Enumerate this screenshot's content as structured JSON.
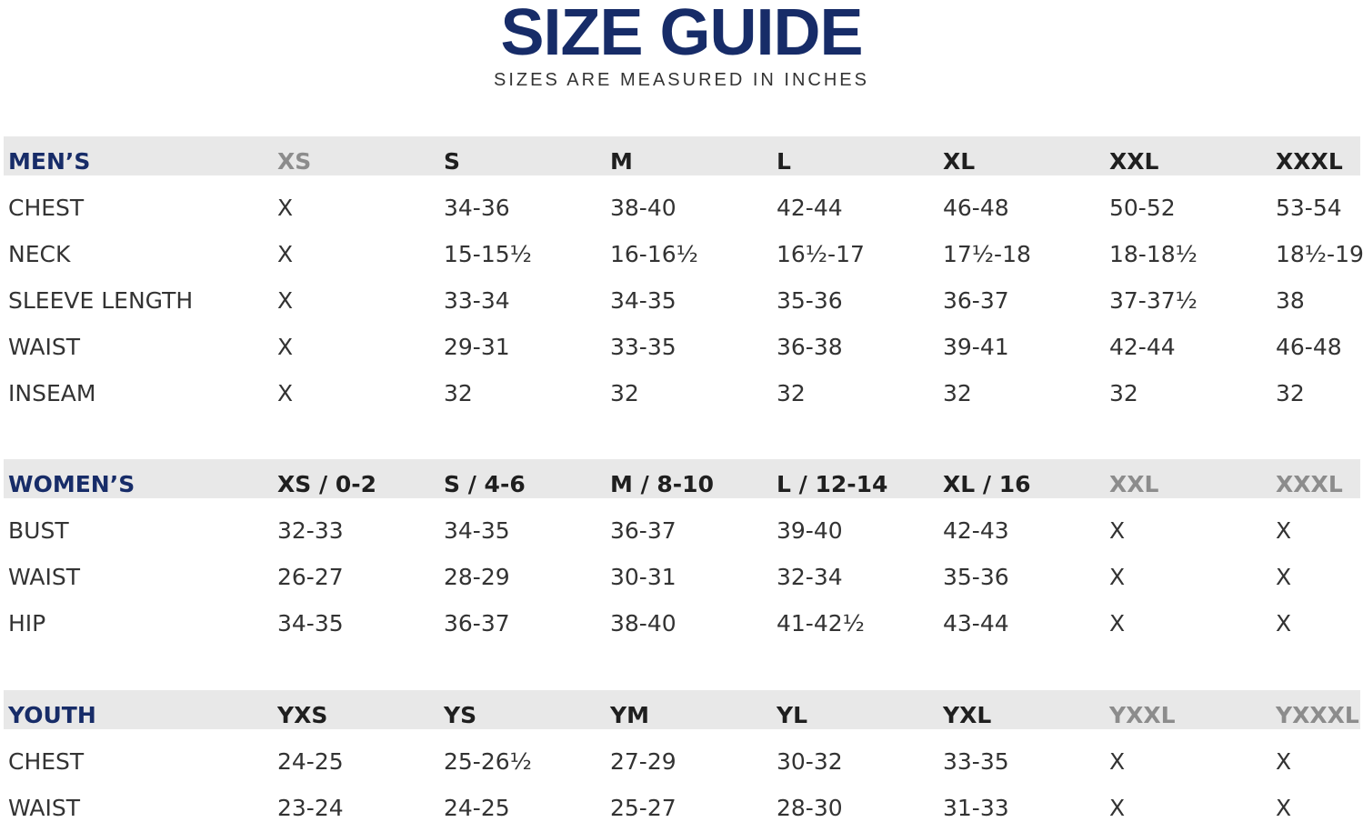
{
  "header": {
    "title": "SIZE GUIDE",
    "subtitle": "SIZES ARE MEASURED IN INCHES"
  },
  "sections": [
    {
      "label": "MEN’S",
      "sizes": [
        "XS",
        "S",
        "M",
        "L",
        "XL",
        "XXL",
        "XXXL"
      ],
      "rows": [
        {
          "label": "CHEST",
          "values": [
            "X",
            "34-36",
            "38-40",
            "42-44",
            "46-48",
            "50-52",
            "53-54"
          ]
        },
        {
          "label": "NECK",
          "values": [
            "X",
            "15-15½",
            "16-16½",
            "16½-17",
            "17½-18",
            "18-18½",
            "18½-19"
          ]
        },
        {
          "label": "SLEEVE LENGTH",
          "values": [
            "X",
            "33-34",
            "34-35",
            "35-36",
            "36-37",
            "37-37½",
            "38"
          ]
        },
        {
          "label": "WAIST",
          "values": [
            "X",
            "29-31",
            "33-35",
            "36-38",
            "39-41",
            "42-44",
            "46-48"
          ]
        },
        {
          "label": "INSEAM",
          "values": [
            "X",
            "32",
            "32",
            "32",
            "32",
            "32",
            "32"
          ]
        }
      ]
    },
    {
      "label": "WOMEN’S",
      "sizes": [
        "XS / 0-2",
        "S / 4-6",
        "M / 8-10",
        "L / 12-14",
        "XL / 16",
        "XXL",
        "XXXL"
      ],
      "rows": [
        {
          "label": "BUST",
          "values": [
            "32-33",
            "34-35",
            "36-37",
            "39-40",
            "42-43",
            "X",
            "X"
          ]
        },
        {
          "label": "WAIST",
          "values": [
            "26-27",
            "28-29",
            "30-31",
            "32-34",
            "35-36",
            "X",
            "X"
          ]
        },
        {
          "label": "HIP",
          "values": [
            "34-35",
            "36-37",
            "38-40",
            "41-42½",
            "43-44",
            "X",
            "X"
          ]
        }
      ]
    },
    {
      "label": "YOUTH",
      "sizes": [
        "YXS",
        "YS",
        "YM",
        "YL",
        "YXL",
        "YXXL",
        "YXXXL"
      ],
      "rows": [
        {
          "label": "CHEST",
          "values": [
            "24-25",
            "25-26½",
            "27-29",
            "30-32",
            "33-35",
            "X",
            "X"
          ]
        },
        {
          "label": "WAIST",
          "values": [
            "23-24",
            "24-25",
            "25-27",
            "28-30",
            "31-33",
            "X",
            "X"
          ]
        }
      ]
    }
  ]
}
